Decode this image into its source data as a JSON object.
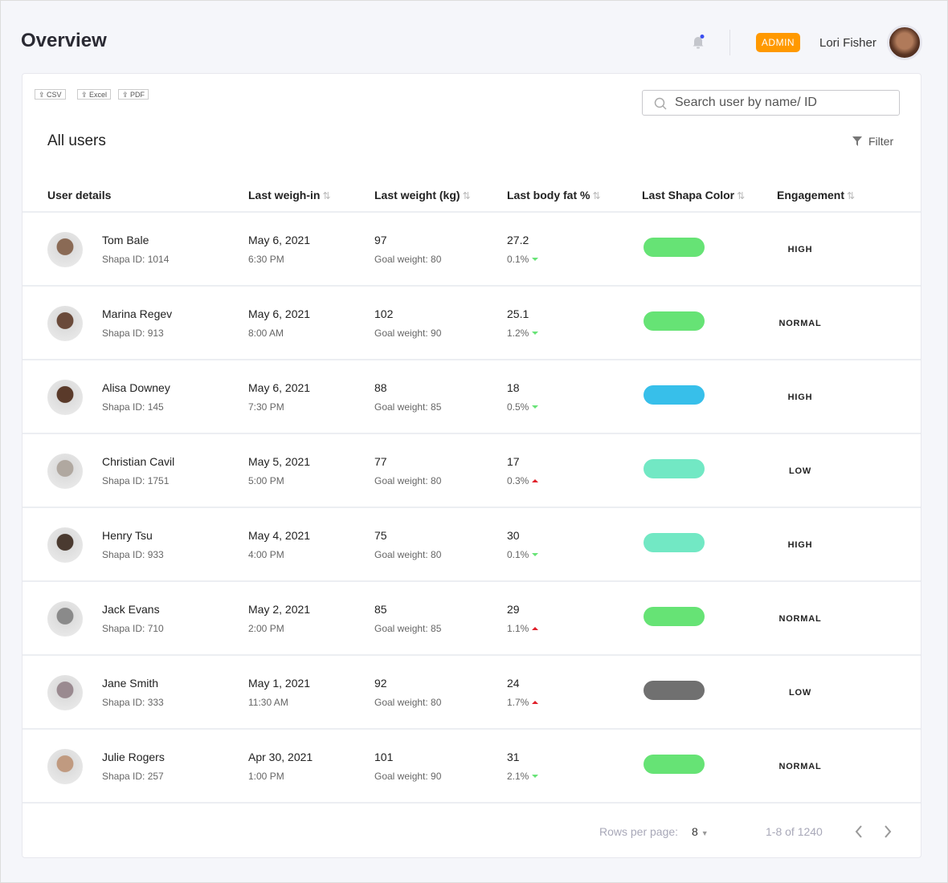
{
  "header": {
    "title": "Overview",
    "role_badge": "ADMIN",
    "user_name": "Lori Fisher"
  },
  "toolbar": {
    "csv": "CSV",
    "excel": "Excel",
    "pdf": "PDF",
    "search_placeholder": "Search user by name/ ID",
    "section_title": "All users",
    "filter": "Filter"
  },
  "columns": [
    "User details",
    "Last weigh-in",
    "Last weight (kg)",
    "Last body fat %",
    "Last Shapa Color",
    "Engagement"
  ],
  "rows": [
    {
      "name": "Tom Bale",
      "id": "Shapa ID: 1014",
      "date": "May 6, 2021",
      "time": "6:30 PM",
      "weight": "97",
      "goal": "Goal weight: 80",
      "fat": "27.2",
      "change": "0.1%",
      "dir": "down",
      "color": "#66e375",
      "engagement": "HIGH",
      "av": "#8a6a55"
    },
    {
      "name": "Marina Regev",
      "id": "Shapa ID: 913",
      "date": "May 6, 2021",
      "time": "8:00 AM",
      "weight": "102",
      "goal": "Goal weight: 90",
      "fat": "25.1",
      "change": "1.2%",
      "dir": "down",
      "color": "#66e375",
      "engagement": "NORMAL",
      "av": "#6a4a3a"
    },
    {
      "name": "Alisa Downey",
      "id": "Shapa ID: 145",
      "date": "May 6, 2021",
      "time": "7:30 PM",
      "weight": "88",
      "goal": "Goal weight: 85",
      "fat": "18",
      "change": "0.5%",
      "dir": "down",
      "color": "#37bfea",
      "engagement": "HIGH",
      "av": "#5a3a2a"
    },
    {
      "name": "Christian Cavil",
      "id": "Shapa ID: 1751",
      "date": "May 5, 2021",
      "time": "5:00 PM",
      "weight": "77",
      "goal": "Goal weight: 80",
      "fat": "17",
      "change": "0.3%",
      "dir": "up",
      "color": "#72e8c4",
      "engagement": "LOW",
      "av": "#b0a8a0"
    },
    {
      "name": "Henry Tsu",
      "id": "Shapa ID: 933",
      "date": "May 4, 2021",
      "time": "4:00 PM",
      "weight": "75",
      "goal": "Goal weight: 80",
      "fat": "30",
      "change": "0.1%",
      "dir": "down",
      "color": "#72e8c4",
      "engagement": "HIGH",
      "av": "#4a3a30"
    },
    {
      "name": "Jack Evans",
      "id": "Shapa ID: 710",
      "date": "May 2, 2021",
      "time": "2:00 PM",
      "weight": "85",
      "goal": "Goal weight: 85",
      "fat": "29",
      "change": "1.1%",
      "dir": "up",
      "color": "#66e375",
      "engagement": "NORMAL",
      "av": "#8a8a8a"
    },
    {
      "name": "Jane Smith",
      "id": "Shapa ID: 333",
      "date": "May 1, 2021",
      "time": "11:30 AM",
      "weight": "92",
      "goal": "Goal weight: 80",
      "fat": "24",
      "change": "1.7%",
      "dir": "up",
      "color": "#707070",
      "engagement": "LOW",
      "av": "#9a8a90"
    },
    {
      "name": "Julie Rogers",
      "id": "Shapa ID: 257",
      "date": "Apr 30, 2021",
      "time": "1:00 PM",
      "weight": "101",
      "goal": "Goal weight: 90",
      "fat": "31",
      "change": "2.1%",
      "dir": "down",
      "color": "#66e375",
      "engagement": "NORMAL",
      "av": "#c09a80"
    }
  ],
  "footer": {
    "rows_label": "Rows per page:",
    "rows_value": "8",
    "range": "1-8 of 1240"
  }
}
